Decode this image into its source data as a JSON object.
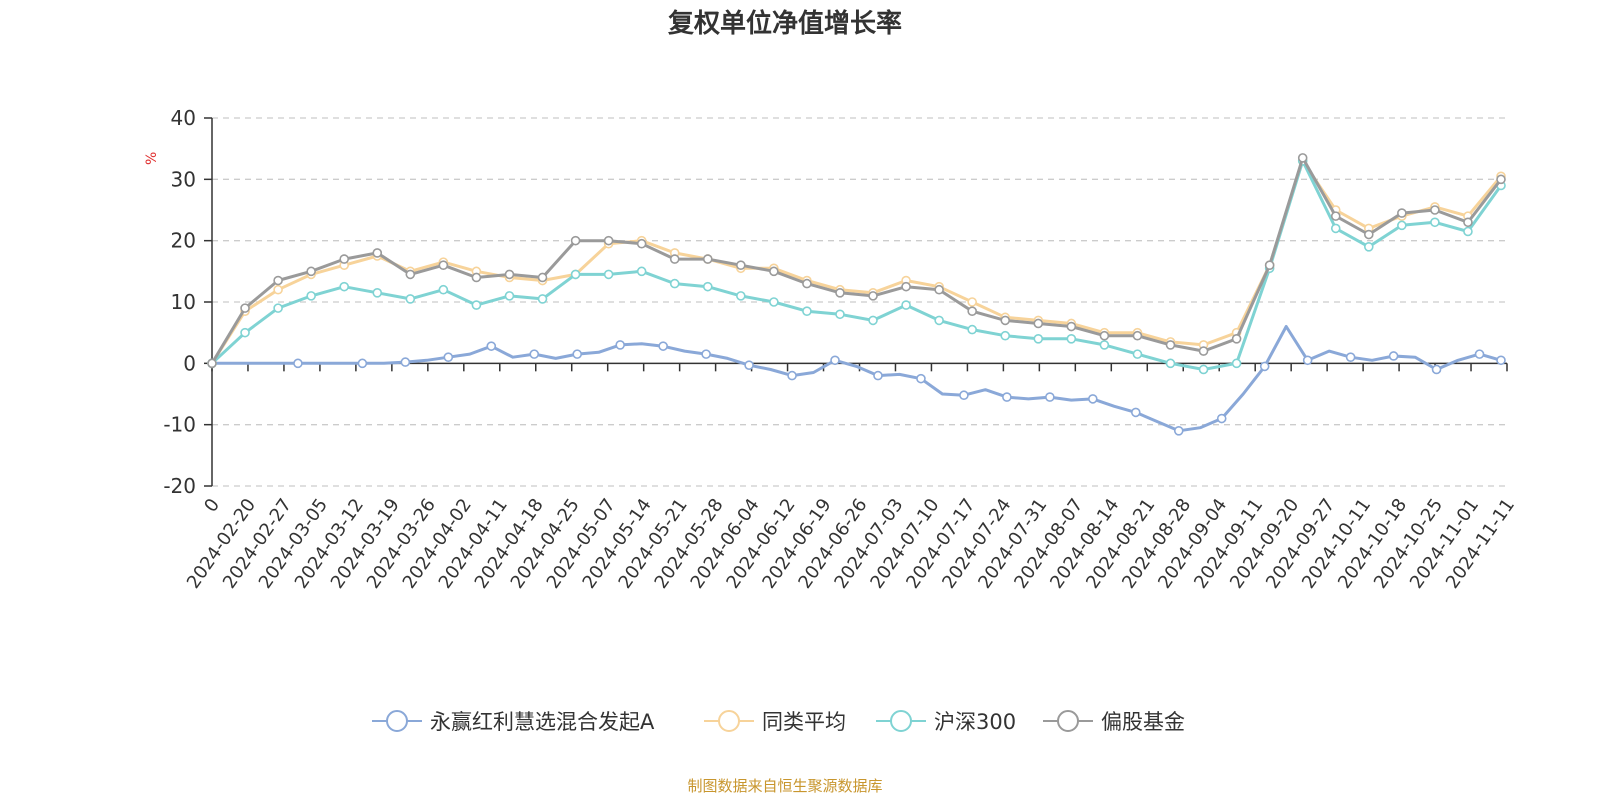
{
  "chart_data": {
    "type": "line",
    "title": "复权单位净值增长率",
    "y_unit": "%",
    "ylim": [
      -20,
      40
    ],
    "y_ticks": [
      40,
      30,
      20,
      10,
      0,
      -10,
      -20
    ],
    "grid": "horizontal dashed",
    "legend_position": "bottom-center",
    "x_tick_labels": [
      "0",
      "2024-02-20",
      "2024-02-27",
      "2024-03-05",
      "2024-03-12",
      "2024-03-19",
      "2024-03-26",
      "2024-04-02",
      "2024-04-11",
      "2024-04-18",
      "2024-04-25",
      "2024-05-07",
      "2024-05-14",
      "2024-05-21",
      "2024-05-28",
      "2024-06-04",
      "2024-06-12",
      "2024-06-19",
      "2024-06-26",
      "2024-07-03",
      "2024-07-10",
      "2024-07-17",
      "2024-07-24",
      "2024-07-31",
      "2024-08-07",
      "2024-08-14",
      "2024-08-21",
      "2024-08-28",
      "2024-09-04",
      "2024-09-11",
      "2024-09-20",
      "2024-09-27",
      "2024-10-11",
      "2024-10-18",
      "2024-10-25",
      "2024-11-01",
      "2024-11-11"
    ],
    "series": [
      {
        "name": "永赢红利慧选混合发起A",
        "color": "#8aa8d8",
        "points": [
          [
            0,
            0
          ],
          [
            2,
            0
          ],
          [
            4,
            0
          ],
          [
            6,
            0
          ],
          [
            7,
            0
          ],
          [
            8,
            0
          ],
          [
            9,
            0.2
          ],
          [
            10,
            0.5
          ],
          [
            11,
            1.0
          ],
          [
            12,
            1.5
          ],
          [
            13,
            2.8
          ],
          [
            14,
            1.0
          ],
          [
            15,
            1.5
          ],
          [
            16,
            0.8
          ],
          [
            17,
            1.5
          ],
          [
            18,
            1.8
          ],
          [
            19,
            3.0
          ],
          [
            20,
            3.2
          ],
          [
            21,
            2.8
          ],
          [
            22,
            2.0
          ],
          [
            23,
            1.5
          ],
          [
            24,
            0.8
          ],
          [
            25,
            -0.3
          ],
          [
            26,
            -1.0
          ],
          [
            27,
            -2.0
          ],
          [
            28,
            -1.5
          ],
          [
            29,
            0.5
          ],
          [
            30,
            -0.5
          ],
          [
            31,
            -2.0
          ],
          [
            32,
            -1.8
          ],
          [
            33,
            -2.5
          ],
          [
            34,
            -5.0
          ],
          [
            35,
            -5.2
          ],
          [
            36,
            -4.3
          ],
          [
            37,
            -5.5
          ],
          [
            38,
            -5.8
          ],
          [
            39,
            -5.5
          ],
          [
            40,
            -6.0
          ],
          [
            41,
            -5.8
          ],
          [
            42,
            -7.0
          ],
          [
            43,
            -8.0
          ],
          [
            44,
            -9.5
          ],
          [
            45,
            -11.0
          ],
          [
            46,
            -10.5
          ],
          [
            47,
            -9.0
          ],
          [
            48,
            -5.0
          ],
          [
            49,
            -0.5
          ],
          [
            50,
            6.0
          ],
          [
            51,
            0.5
          ],
          [
            52,
            2.0
          ],
          [
            53,
            1.0
          ],
          [
            54,
            0.5
          ],
          [
            55,
            1.2
          ],
          [
            56,
            1.0
          ],
          [
            57,
            -1.0
          ],
          [
            58,
            0.5
          ],
          [
            59,
            1.5
          ],
          [
            60,
            0.5
          ]
        ]
      },
      {
        "name": "同类平均",
        "color": "#f7d39a",
        "points": [
          [
            0,
            0
          ],
          [
            1,
            8.5
          ],
          [
            2,
            12.0
          ],
          [
            3,
            14.5
          ],
          [
            4,
            16.0
          ],
          [
            5,
            17.5
          ],
          [
            6,
            15.0
          ],
          [
            7,
            16.5
          ],
          [
            8,
            15.0
          ],
          [
            9,
            14.0
          ],
          [
            10,
            13.5
          ],
          [
            11,
            14.5
          ],
          [
            12,
            19.5
          ],
          [
            13,
            20.0
          ],
          [
            14,
            18.0
          ],
          [
            15,
            17.0
          ],
          [
            16,
            15.5
          ],
          [
            17,
            15.5
          ],
          [
            18,
            13.5
          ],
          [
            19,
            12.0
          ],
          [
            20,
            11.5
          ],
          [
            21,
            13.5
          ],
          [
            22,
            12.5
          ],
          [
            23,
            10.0
          ],
          [
            24,
            7.5
          ],
          [
            25,
            7.0
          ],
          [
            26,
            6.5
          ],
          [
            27,
            5.0
          ],
          [
            28,
            5.0
          ],
          [
            29,
            3.5
          ],
          [
            30,
            3.0
          ],
          [
            31,
            5.0
          ],
          [
            32,
            16.0
          ],
          [
            33,
            33.0
          ],
          [
            34,
            25.0
          ],
          [
            35,
            22.0
          ],
          [
            36,
            24.0
          ],
          [
            37,
            25.5
          ],
          [
            38,
            24.0
          ],
          [
            39,
            30.5
          ]
        ]
      },
      {
        "name": "沪深300",
        "color": "#7fd3d3",
        "points": [
          [
            0,
            0
          ],
          [
            1,
            5.0
          ],
          [
            2,
            9.0
          ],
          [
            3,
            11.0
          ],
          [
            4,
            12.5
          ],
          [
            5,
            11.5
          ],
          [
            6,
            10.5
          ],
          [
            7,
            12.0
          ],
          [
            8,
            9.5
          ],
          [
            9,
            11.0
          ],
          [
            10,
            10.5
          ],
          [
            11,
            14.5
          ],
          [
            12,
            14.5
          ],
          [
            13,
            15.0
          ],
          [
            14,
            13.0
          ],
          [
            15,
            12.5
          ],
          [
            16,
            11.0
          ],
          [
            17,
            10.0
          ],
          [
            18,
            8.5
          ],
          [
            19,
            8.0
          ],
          [
            20,
            7.0
          ],
          [
            21,
            9.5
          ],
          [
            22,
            7.0
          ],
          [
            23,
            5.5
          ],
          [
            24,
            4.5
          ],
          [
            25,
            4.0
          ],
          [
            26,
            4.0
          ],
          [
            27,
            3.0
          ],
          [
            28,
            1.5
          ],
          [
            29,
            0.0
          ],
          [
            30,
            -1.0
          ],
          [
            31,
            0.0
          ],
          [
            32,
            15.5
          ],
          [
            33,
            33.0
          ],
          [
            34,
            22.0
          ],
          [
            35,
            19.0
          ],
          [
            36,
            22.5
          ],
          [
            37,
            23.0
          ],
          [
            38,
            21.5
          ],
          [
            39,
            29.0
          ]
        ]
      },
      {
        "name": "偏股基金",
        "color": "#9a9a9a",
        "points": [
          [
            0,
            0
          ],
          [
            1,
            9.0
          ],
          [
            2,
            13.5
          ],
          [
            3,
            15.0
          ],
          [
            4,
            17.0
          ],
          [
            5,
            18.0
          ],
          [
            6,
            14.5
          ],
          [
            7,
            16.0
          ],
          [
            8,
            14.0
          ],
          [
            9,
            14.5
          ],
          [
            10,
            14.0
          ],
          [
            11,
            20.0
          ],
          [
            12,
            20.0
          ],
          [
            13,
            19.5
          ],
          [
            14,
            17.0
          ],
          [
            15,
            17.0
          ],
          [
            16,
            16.0
          ],
          [
            17,
            15.0
          ],
          [
            18,
            13.0
          ],
          [
            19,
            11.5
          ],
          [
            20,
            11.0
          ],
          [
            21,
            12.5
          ],
          [
            22,
            12.0
          ],
          [
            23,
            8.5
          ],
          [
            24,
            7.0
          ],
          [
            25,
            6.5
          ],
          [
            26,
            6.0
          ],
          [
            27,
            4.5
          ],
          [
            28,
            4.5
          ],
          [
            29,
            3.0
          ],
          [
            30,
            2.0
          ],
          [
            31,
            4.0
          ],
          [
            32,
            16.0
          ],
          [
            33,
            33.5
          ],
          [
            34,
            24.0
          ],
          [
            35,
            21.0
          ],
          [
            36,
            24.5
          ],
          [
            37,
            25.0
          ],
          [
            38,
            23.0
          ],
          [
            39,
            30.0
          ]
        ]
      }
    ]
  },
  "source": "制图数据来自恒生聚源数据库"
}
